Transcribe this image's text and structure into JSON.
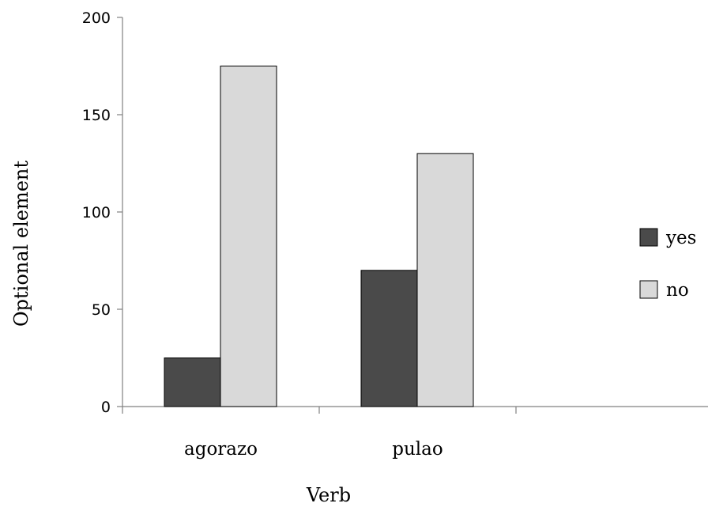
{
  "chart_data": {
    "type": "bar",
    "title": "",
    "xlabel": "Verb",
    "ylabel": "Optional element",
    "categories": [
      "agorazo",
      "pulao",
      ""
    ],
    "series": [
      {
        "name": "yes",
        "values": [
          25,
          70,
          null
        ],
        "color": "#4a4a4a"
      },
      {
        "name": "no",
        "values": [
          175,
          130,
          null
        ],
        "color": "#d9d9d9"
      }
    ],
    "ylim": [
      0,
      200
    ],
    "yticks": [
      "0",
      "50",
      "100",
      "150",
      "200"
    ],
    "grid": false,
    "legend_position": "right",
    "bar_outline_color": "#000000"
  }
}
